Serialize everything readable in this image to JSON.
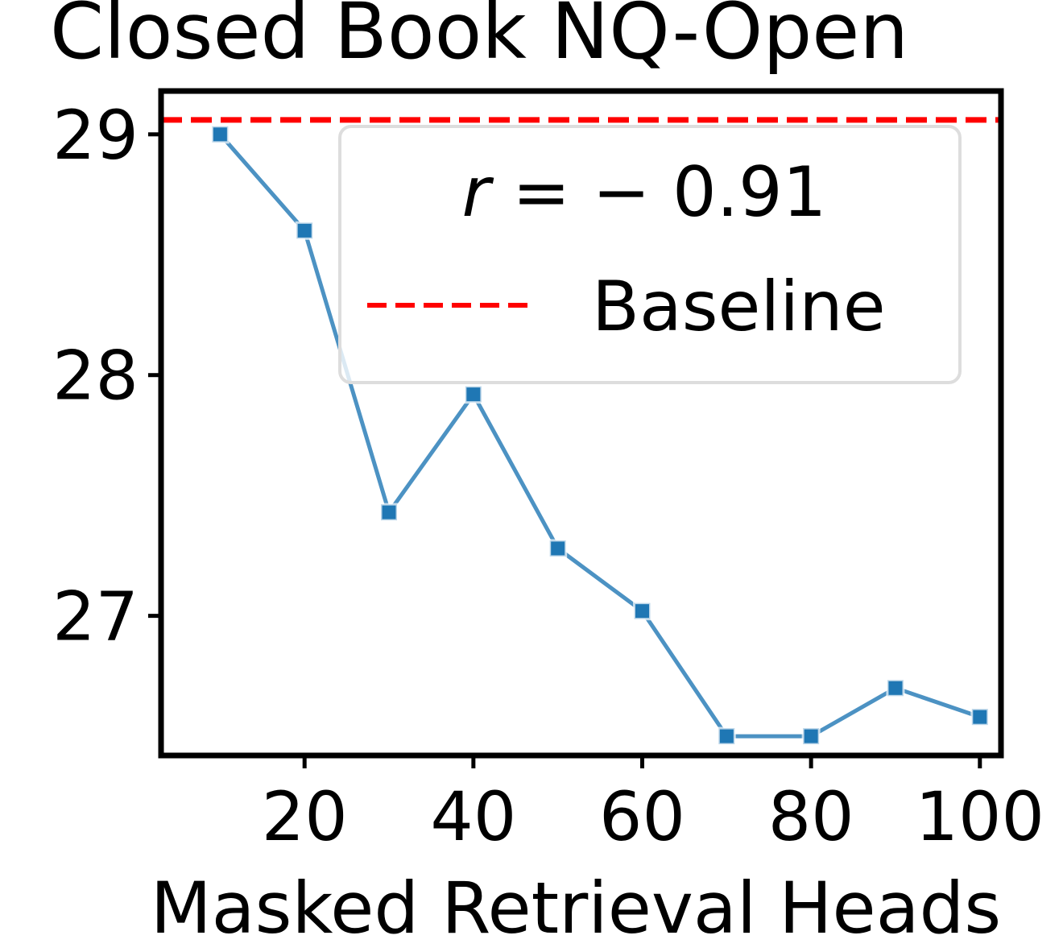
{
  "chart_data": {
    "type": "line",
    "title": "Closed Book NQ-Open",
    "xlabel": "Masked Retrieval Heads",
    "ylabel": "",
    "xlim": [
      3,
      102.5
    ],
    "ylim": [
      26.42,
      29.18
    ],
    "xticks": [
      20,
      40,
      60,
      80,
      100
    ],
    "xtick_labels": [
      "20",
      "40",
      "60",
      "80",
      "100"
    ],
    "yticks": [
      27,
      28,
      29
    ],
    "ytick_labels": [
      "27",
      "28",
      "29"
    ],
    "grid": false,
    "legend_placement": "upper-right",
    "series": [
      {
        "name": "r = − 0.91",
        "color": "#1f77b4",
        "marker": "square",
        "x": [
          10,
          20,
          30,
          40,
          50,
          60,
          70,
          80,
          90,
          100
        ],
        "y": [
          29.0,
          28.6,
          27.43,
          27.92,
          27.28,
          27.02,
          26.5,
          26.5,
          26.7,
          26.58
        ]
      }
    ],
    "baseline": {
      "name": "Baseline",
      "y": 29.06,
      "color": "#ff0000",
      "style": "dashed"
    },
    "legend": {
      "entries": [
        {
          "label_prefix": "r",
          "label_rest": " =  − 0.91",
          "kind": "stat"
        },
        {
          "label": "Baseline",
          "kind": "dashed-line",
          "color": "#ff0000"
        }
      ]
    }
  }
}
